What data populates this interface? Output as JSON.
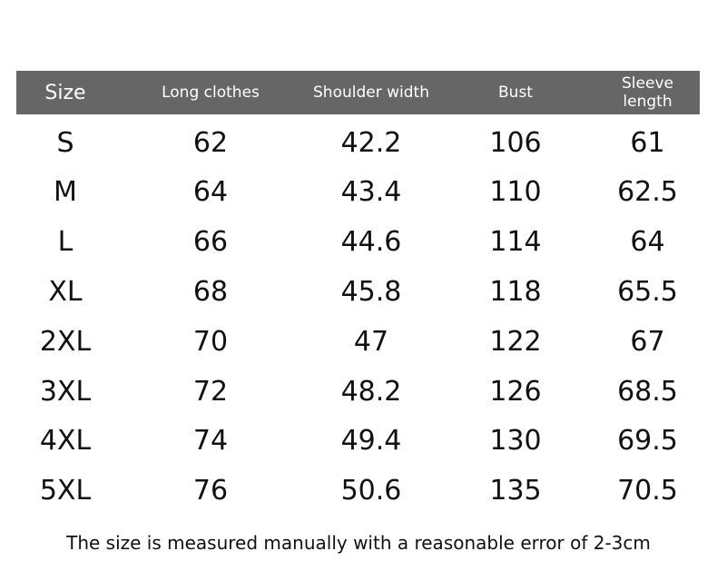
{
  "table": {
    "header": [
      "Size",
      "Long clothes",
      "Shoulder width",
      "Bust",
      "Sleeve length"
    ],
    "rows": [
      [
        "S",
        "62",
        "42.2",
        "106",
        "61"
      ],
      [
        "M",
        "64",
        "43.4",
        "110",
        "62.5"
      ],
      [
        "L",
        "66",
        "44.6",
        "114",
        "64"
      ],
      [
        "XL",
        "68",
        "45.8",
        "118",
        "65.5"
      ],
      [
        "2XL",
        "70",
        "47",
        "122",
        "67"
      ],
      [
        "3XL",
        "72",
        "48.2",
        "126",
        "68.5"
      ],
      [
        "4XL",
        "74",
        "49.4",
        "130",
        "69.5"
      ],
      [
        "5XL",
        "76",
        "50.6",
        "135",
        "70.5"
      ]
    ]
  },
  "note": "The size is measured manually with a reasonable error of 2-3cm"
}
